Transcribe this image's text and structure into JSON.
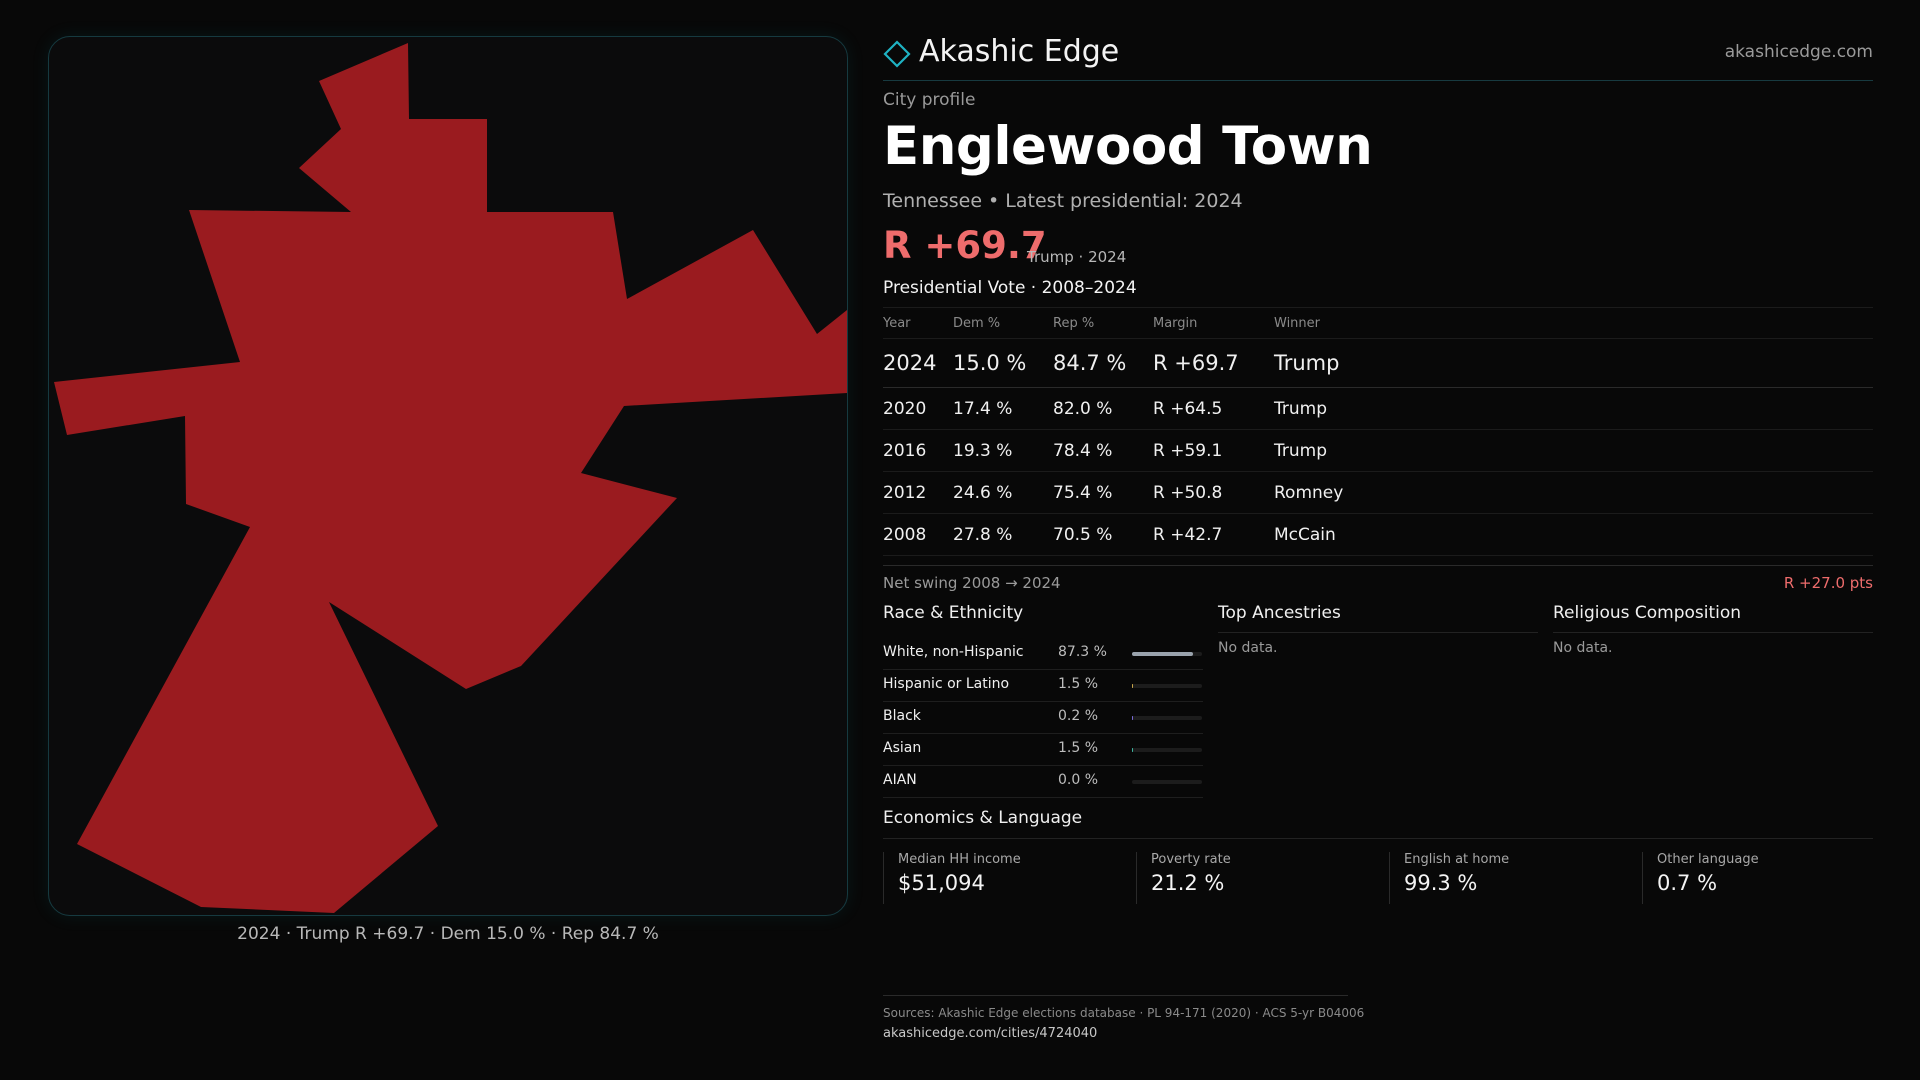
{
  "brand": {
    "name": "Akashic Edge",
    "url": "akashicedge.com"
  },
  "profile": {
    "eyebrow": "City profile",
    "city": "Englewood Town",
    "subtitle": "Tennessee • Latest presidential: 2024",
    "margin": "R +69.7",
    "margin_note": "Trump · 2024"
  },
  "map": {
    "fill_color": "#9a1b1f",
    "caption": "2024 · Trump R +69.7 · Dem 15.0 % · Rep 84.7 %"
  },
  "vote_history": {
    "title": "Presidential Vote · 2008–2024",
    "headers": [
      "Year",
      "Dem %",
      "Rep %",
      "Margin",
      "Winner"
    ],
    "rows": [
      {
        "year": "2024",
        "dem": "15.0 %",
        "rep": "84.7 %",
        "margin": "R +69.7",
        "winner": "Trump"
      },
      {
        "year": "2020",
        "dem": "17.4 %",
        "rep": "82.0 %",
        "margin": "R +64.5",
        "winner": "Trump"
      },
      {
        "year": "2016",
        "dem": "19.3 %",
        "rep": "78.4 %",
        "margin": "R +59.1",
        "winner": "Trump"
      },
      {
        "year": "2012",
        "dem": "24.6 %",
        "rep": "75.4 %",
        "margin": "R +50.8",
        "winner": "Romney"
      },
      {
        "year": "2008",
        "dem": "27.8 %",
        "rep": "70.5 %",
        "margin": "R +42.7",
        "winner": "McCain"
      }
    ],
    "swing_label": "Net swing 2008 → 2024",
    "swing_value": "R +27.0 pts"
  },
  "race": {
    "title": "Race & Ethnicity",
    "rows": [
      {
        "label": "White, non-Hispanic",
        "pct": "87.3 %",
        "value": 87.3,
        "color": "#9aa3ad"
      },
      {
        "label": "Hispanic or Latino",
        "pct": "1.5 %",
        "value": 1.5,
        "color": "#c8a64a"
      },
      {
        "label": "Black",
        "pct": "0.2 %",
        "value": 0.2,
        "color": "#7a6ad8"
      },
      {
        "label": "Asian",
        "pct": "1.5 %",
        "value": 1.5,
        "color": "#3fb6a0"
      },
      {
        "label": "AIAN",
        "pct": "0.0 %",
        "value": 0.0,
        "color": "#c07a4a"
      }
    ]
  },
  "ancestries": {
    "title": "Top Ancestries",
    "empty": "No data."
  },
  "religion": {
    "title": "Religious Composition",
    "empty": "No data."
  },
  "economics": {
    "title": "Economics & Language",
    "stats": [
      {
        "label": "Median HH income",
        "value": "$51,094"
      },
      {
        "label": "Poverty rate",
        "value": "21.2 %"
      },
      {
        "label": "English at home",
        "value": "99.3 %"
      },
      {
        "label": "Other language",
        "value": "0.7 %"
      }
    ]
  },
  "footer": {
    "sources": "Sources: Akashic Edge elections database · PL 94-171 (2020) · ACS 5-yr B04006",
    "url": "akashicedge.com/cities/4724040"
  }
}
